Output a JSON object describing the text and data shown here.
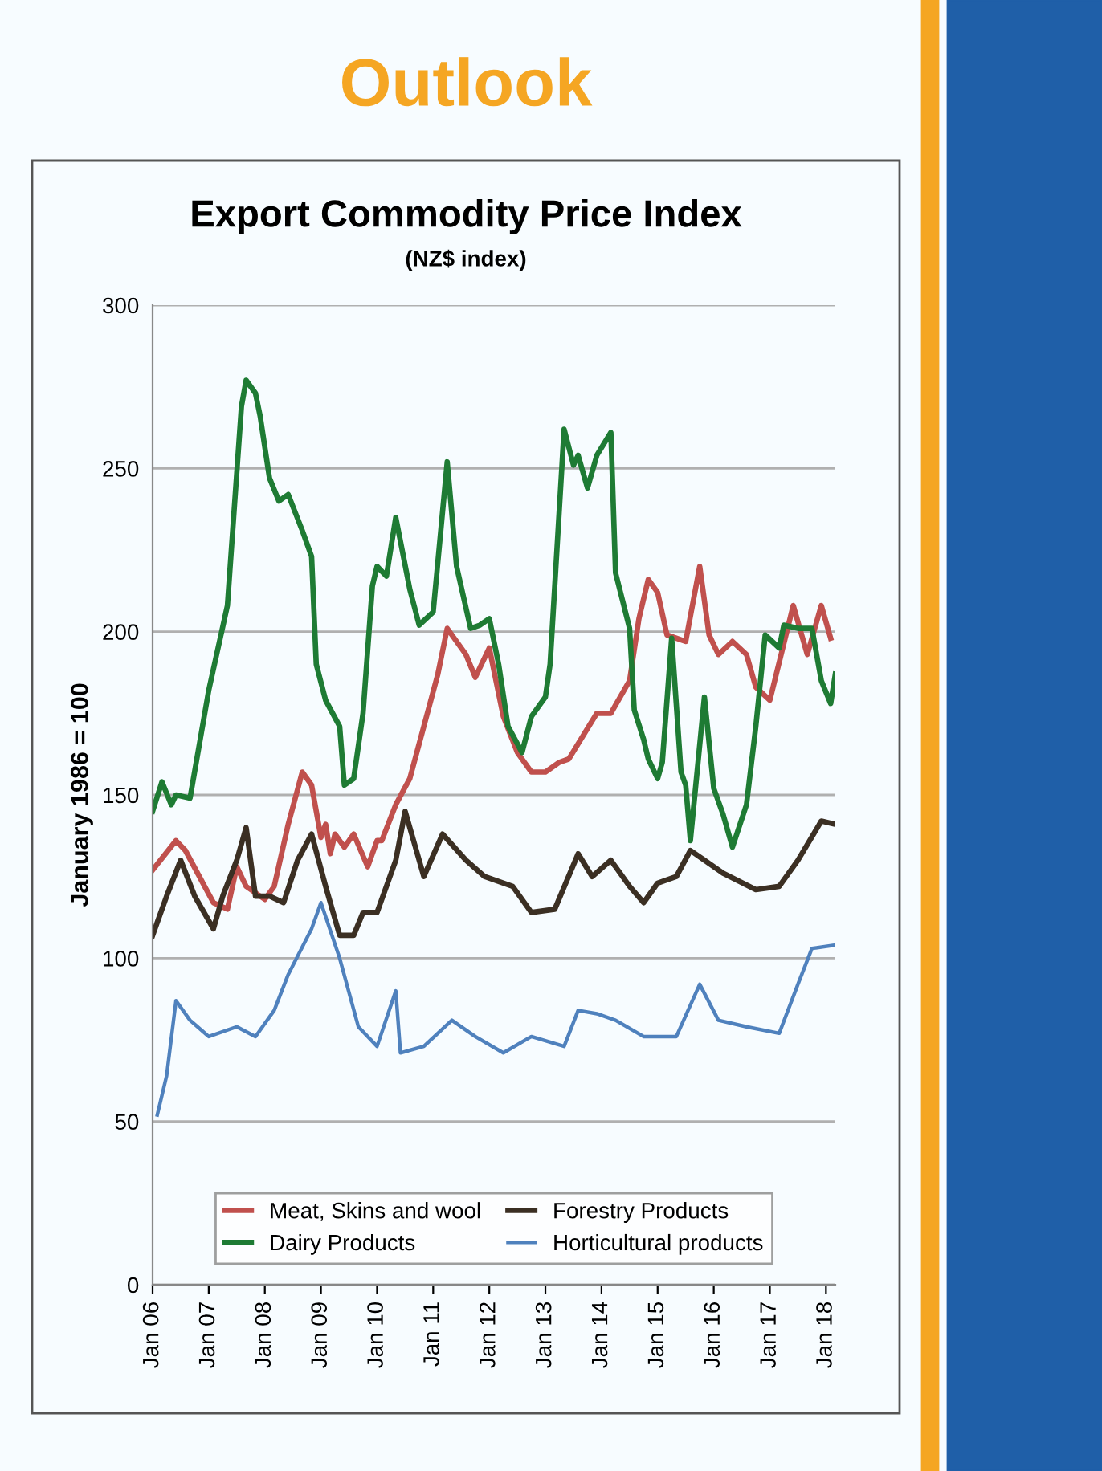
{
  "chart_data": {
    "type": "line",
    "title": "Export Commodity Price Index",
    "subtitle": "(NZ$ index)",
    "ylabel": "January 1986 = 100",
    "annotations": [
      "Outlook"
    ],
    "xlim": [
      "2006-01",
      "2018-03"
    ],
    "xticks": [
      {
        "value": "2006-01",
        "label": "Jan 06"
      },
      {
        "value": "2007-01",
        "label": "Jan 07"
      },
      {
        "value": "2008-01",
        "label": "Jan 08"
      },
      {
        "value": "2009-01",
        "label": "Jan 09"
      },
      {
        "value": "2010-01",
        "label": "Jan 10"
      },
      {
        "value": "2011-01",
        "label": "Jan 11"
      },
      {
        "value": "2012-01",
        "label": "Jan 12"
      },
      {
        "value": "2013-01",
        "label": "Jan 13"
      },
      {
        "value": "2014-01",
        "label": "Jan 14"
      },
      {
        "value": "2015-01",
        "label": "Jan 15"
      },
      {
        "value": "2016-01",
        "label": "Jan 16"
      },
      {
        "value": "2017-01",
        "label": "Jan 17"
      },
      {
        "value": "2018-01",
        "label": "Jan 18"
      }
    ],
    "ylim": [
      0,
      300
    ],
    "yticks": [
      0,
      50,
      100,
      150,
      200,
      250,
      300
    ],
    "grid": "y",
    "legend": "bottom",
    "marker": "none",
    "line_style": "solid",
    "series": [
      {
        "name": "Meat, Skins and wool",
        "color": "#c0504d",
        "x": [
          "2006-01",
          "2006-06",
          "2006-08",
          "2006-11",
          "2007-02",
          "2007-05",
          "2007-07",
          "2007-09",
          "2008-01",
          "2008-03",
          "2008-06",
          "2008-09",
          "2008-11",
          "2009-01",
          "2009-02",
          "2009-03",
          "2009-04",
          "2009-06",
          "2009-08",
          "2009-11",
          "2010-01",
          "2010-02",
          "2010-05",
          "2010-08",
          "2010-11",
          "2011-02",
          "2011-04",
          "2011-08",
          "2011-10",
          "2012-01",
          "2012-04",
          "2012-07",
          "2012-10",
          "2013-01",
          "2013-04",
          "2013-06",
          "2013-09",
          "2013-12",
          "2014-03",
          "2014-07",
          "2014-09",
          "2014-11",
          "2015-01",
          "2015-03",
          "2015-07",
          "2015-10",
          "2015-12",
          "2016-02",
          "2016-05",
          "2016-08",
          "2016-10",
          "2017-01",
          "2017-06",
          "2017-09",
          "2017-12",
          "2018-02"
        ],
        "values": [
          127,
          136,
          133,
          125,
          117,
          115,
          128,
          122,
          118,
          122,
          141,
          157,
          153,
          137,
          141,
          132,
          138,
          134,
          138,
          128,
          136,
          136,
          147,
          155,
          171,
          187,
          201,
          193,
          186,
          195,
          174,
          163,
          157,
          157,
          160,
          161,
          168,
          175,
          175,
          185,
          204,
          216,
          212,
          199,
          197,
          220,
          199,
          193,
          197,
          193,
          183,
          179,
          208,
          193,
          208,
          198
        ]
      },
      {
        "name": "Dairy Products",
        "color": "#1e7b34",
        "x": [
          "2006-01",
          "2006-03",
          "2006-05",
          "2006-06",
          "2006-09",
          "2007-01",
          "2007-05",
          "2007-08",
          "2007-09",
          "2007-11",
          "2007-12",
          "2008-02",
          "2008-04",
          "2008-06",
          "2008-09",
          "2008-11",
          "2008-12",
          "2009-02",
          "2009-05",
          "2009-06",
          "2009-08",
          "2009-10",
          "2009-12",
          "2010-01",
          "2010-03",
          "2010-05",
          "2010-08",
          "2010-10",
          "2011-01",
          "2011-04",
          "2011-06",
          "2011-09",
          "2011-11",
          "2012-01",
          "2012-03",
          "2012-05",
          "2012-08",
          "2012-10",
          "2013-01",
          "2013-02",
          "2013-05",
          "2013-07",
          "2013-08",
          "2013-10",
          "2013-12",
          "2014-03",
          "2014-04",
          "2014-07",
          "2014-08",
          "2014-10",
          "2014-11",
          "2015-01",
          "2015-02",
          "2015-04",
          "2015-06",
          "2015-07",
          "2015-08",
          "2015-11",
          "2016-01",
          "2016-03",
          "2016-05",
          "2016-08",
          "2016-10",
          "2016-12",
          "2017-03",
          "2017-04",
          "2017-07",
          "2017-10",
          "2017-12",
          "2018-02",
          "2018-03"
        ],
        "values": [
          145,
          154,
          147,
          150,
          149,
          182,
          208,
          269,
          277,
          273,
          266,
          247,
          240,
          242,
          231,
          223,
          190,
          179,
          171,
          153,
          155,
          175,
          214,
          220,
          217,
          235,
          213,
          202,
          206,
          252,
          220,
          201,
          202,
          204,
          190,
          171,
          163,
          174,
          180,
          190,
          262,
          251,
          254,
          244,
          254,
          261,
          218,
          201,
          176,
          167,
          161,
          155,
          160,
          198,
          157,
          153,
          136,
          180,
          152,
          144,
          134,
          147,
          171,
          199,
          195,
          202,
          201,
          201,
          185,
          178,
          187
        ]
      },
      {
        "name": "Forestry Products",
        "color": "#3b2f23",
        "x": [
          "2006-01",
          "2006-04",
          "2006-07",
          "2006-10",
          "2007-02",
          "2007-04",
          "2007-07",
          "2007-09",
          "2007-11",
          "2008-02",
          "2008-05",
          "2008-08",
          "2008-11",
          "2009-02",
          "2009-05",
          "2009-08",
          "2009-10",
          "2010-01",
          "2010-05",
          "2010-07",
          "2010-11",
          "2011-03",
          "2011-08",
          "2011-12",
          "2012-06",
          "2012-10",
          "2013-03",
          "2013-08",
          "2013-11",
          "2014-03",
          "2014-07",
          "2014-10",
          "2015-01",
          "2015-05",
          "2015-08",
          "2015-11",
          "2016-03",
          "2016-10",
          "2017-03",
          "2017-07",
          "2017-12",
          "2018-03"
        ],
        "values": [
          107,
          119,
          130,
          119,
          109,
          119,
          130,
          140,
          119,
          119,
          117,
          130,
          138,
          122,
          107,
          107,
          114,
          114,
          130,
          145,
          125,
          138,
          130,
          125,
          122,
          114,
          115,
          132,
          125,
          130,
          122,
          117,
          123,
          125,
          133,
          130,
          126,
          121,
          122,
          130,
          142,
          141
        ]
      },
      {
        "name": "Horticultural products",
        "color": "#4f81bd",
        "x": [
          "2006-02",
          "2006-04",
          "2006-06",
          "2006-09",
          "2007-01",
          "2007-07",
          "2007-11",
          "2008-03",
          "2008-06",
          "2008-11",
          "2009-01",
          "2009-05",
          "2009-09",
          "2010-01",
          "2010-05",
          "2010-06",
          "2010-11",
          "2011-05",
          "2011-10",
          "2012-04",
          "2012-10",
          "2013-05",
          "2013-08",
          "2013-12",
          "2014-04",
          "2014-10",
          "2015-05",
          "2015-10",
          "2016-02",
          "2016-08",
          "2017-03",
          "2017-07",
          "2017-10",
          "2018-03"
        ],
        "values": [
          52,
          64,
          87,
          81,
          76,
          79,
          76,
          84,
          95,
          109,
          117,
          100,
          79,
          73,
          90,
          71,
          73,
          81,
          76,
          71,
          76,
          73,
          84,
          83,
          81,
          76,
          76,
          92,
          81,
          79,
          77,
          92,
          103,
          104
        ]
      }
    ]
  }
}
